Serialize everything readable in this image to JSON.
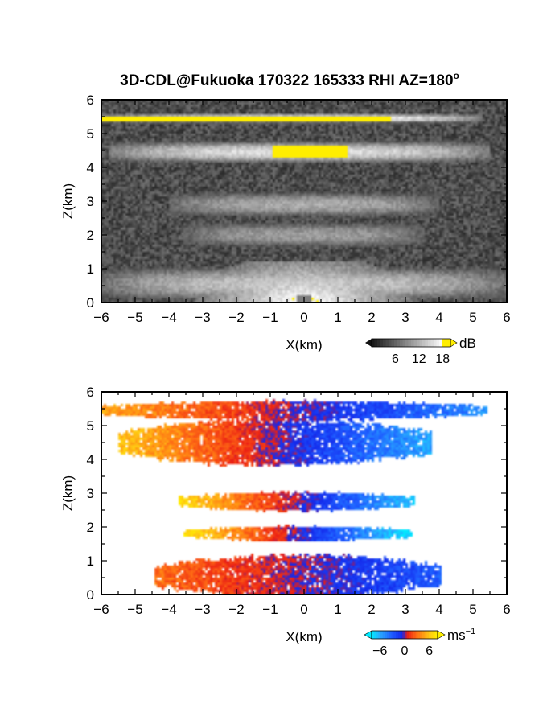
{
  "figure": {
    "title_main": "3D-CDL@Fukuoka 170322 165333 RHI AZ=180",
    "title_sup": "o"
  },
  "chart_data": [
    {
      "type": "heatmap",
      "quantity": "backscatter",
      "xlabel": "X(km)",
      "ylabel": "Z(km)",
      "xlim": [
        -6,
        6
      ],
      "ylim": [
        0,
        6
      ],
      "xticks": [
        -6,
        -5,
        -4,
        -3,
        -2,
        -1,
        0,
        1,
        2,
        3,
        4,
        5,
        6
      ],
      "yticks": [
        0,
        1,
        2,
        3,
        4,
        5,
        6
      ],
      "background": "noise",
      "colorbar": {
        "unit": "dB",
        "ticks": [
          6,
          12,
          18
        ],
        "range": [
          0,
          20
        ],
        "saturation_color": "#ffee00"
      },
      "layers": [
        {
          "x": [
            -6.0,
            5.3
          ],
          "z": [
            5.3,
            5.6
          ],
          "level_db": 16,
          "saturated_x": [
            -6.0,
            2.6
          ]
        },
        {
          "x": [
            -5.8,
            5.5
          ],
          "z": [
            4.1,
            4.8
          ],
          "level_db": 14,
          "saturated_x": [
            -0.9,
            1.3
          ]
        },
        {
          "x": [
            -4.0,
            4.0
          ],
          "z": [
            2.5,
            3.3
          ],
          "level_db": 10
        },
        {
          "x": [
            -3.6,
            3.6
          ],
          "z": [
            1.6,
            2.4
          ],
          "level_db": 9
        },
        {
          "x": [
            -6.0,
            6.0
          ],
          "z": [
            0.0,
            1.1
          ],
          "level_db": 12
        }
      ]
    },
    {
      "type": "heatmap",
      "quantity": "radial velocity",
      "xlabel": "X(km)",
      "ylabel": "Z(km)",
      "xlim": [
        -6,
        6
      ],
      "ylim": [
        0,
        6
      ],
      "xticks": [
        -6,
        -5,
        -4,
        -3,
        -2,
        -1,
        0,
        1,
        2,
        3,
        4,
        5,
        6
      ],
      "yticks": [
        0,
        1,
        2,
        3,
        4,
        5,
        6
      ],
      "colorbar": {
        "unit": "ms",
        "unit_sup": "−1",
        "ticks": [
          -6,
          0,
          6
        ],
        "range": [
          -8,
          8
        ]
      },
      "layers": [
        {
          "x": [
            -6.0,
            5.4
          ],
          "z": [
            5.2,
            5.7
          ],
          "vel_west": 5,
          "vel_east": -5
        },
        {
          "x": [
            -5.5,
            3.8
          ],
          "z": [
            3.9,
            5.1
          ],
          "vel_west": 6,
          "vel_east": -6
        },
        {
          "x": [
            -3.7,
            3.3
          ],
          "z": [
            2.5,
            3.0
          ],
          "vel_west": 7,
          "vel_east": -7
        },
        {
          "x": [
            -3.6,
            3.2
          ],
          "z": [
            1.6,
            2.0
          ],
          "vel_west": 7.5,
          "vel_east": -8
        },
        {
          "x": [
            -4.4,
            4.1
          ],
          "z": [
            0.0,
            1.1
          ],
          "vel_west": 3,
          "vel_east": -3
        }
      ]
    }
  ]
}
